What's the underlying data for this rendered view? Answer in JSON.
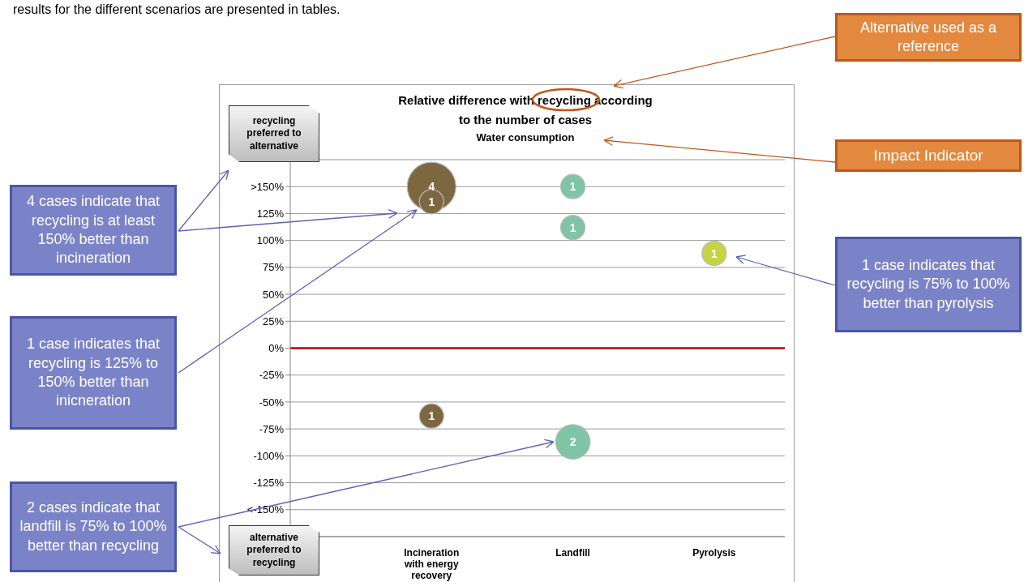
{
  "chart_data": {
    "type": "bubble",
    "title": "Relative difference with recycling according to the number of cases",
    "subtitle": "Water consumption",
    "categories": [
      "Incineration with energy recovery",
      "Landfill",
      "Pyrolysis"
    ],
    "series": [
      {
        "color": "#7d6741",
        "x": [
          "Incineration with energy recovery",
          "Incineration with energy recovery",
          "Incineration with energy recovery"
        ],
        "values": [
          150,
          136,
          -63
        ],
        "sizes": [
          1,
          0.25,
          0.25
        ]
      },
      {
        "color": "#80c4a6",
        "x": [
          "Landfill",
          "Landfill",
          "Landfill"
        ],
        "values": [
          150,
          112,
          -87
        ],
        "sizes": [
          0.25,
          0.25,
          0.5
        ]
      },
      {
        "color": "#c6d443",
        "x": [
          "Pyrolysis"
        ],
        "values": [
          88
        ],
        "sizes": [
          0.25
        ]
      }
    ],
    "ylim": [
      -175,
      175
    ],
    "yticks": [
      {
        "value": -150,
        "label": "<-150%"
      },
      {
        "value": -125,
        "label": "-125%"
      },
      {
        "value": -100,
        "label": "-100%"
      },
      {
        "value": -75,
        "label": "-75%"
      },
      {
        "value": -50,
        "label": "-50%"
      },
      {
        "value": -25,
        "label": "-25%"
      },
      {
        "value": 0,
        "label": "0%"
      },
      {
        "value": 25,
        "label": "25%"
      },
      {
        "value": 50,
        "label": "50%"
      },
      {
        "value": 75,
        "label": "75%"
      },
      {
        "value": 100,
        "label": "100%"
      },
      {
        "value": 125,
        "label": "125%"
      },
      {
        "value": 150,
        "label": ">150%"
      }
    ],
    "grid": "y",
    "ref_lines": [
      {
        "axis": "y",
        "value": 0,
        "color": "#c00000"
      }
    ],
    "annotations": [
      "results for the different scenarios are presented in tables.",
      "Alternative used as a reference",
      "Impact Indicator",
      "recycling preferred to alternative",
      "alternative preferred to recycling",
      "4 cases indicate that recycling is at least 150% better than incineration",
      "1 case indicates that recycling is 125% to 150% better than inicneration",
      "2 cases indicate that landfill is 75% to 100% better than recycling",
      "1 case indicates that recycling is 75% to 100% better than pyrolysis",
      {
        "text": "4",
        "x": "Incineration with energy recovery",
        "y": 150
      },
      {
        "text": "1",
        "x": "Incineration with energy recovery",
        "y": 136
      },
      {
        "text": "1",
        "x": "Incineration with energy recovery",
        "y": -63
      },
      {
        "text": "1",
        "x": "Landfill",
        "y": 150
      },
      {
        "text": "1",
        "x": "Landfill",
        "y": 112
      },
      {
        "text": "2",
        "x": "Landfill",
        "y": -87
      },
      {
        "text": "1",
        "x": "Pyrolysis",
        "y": 88
      }
    ]
  }
}
